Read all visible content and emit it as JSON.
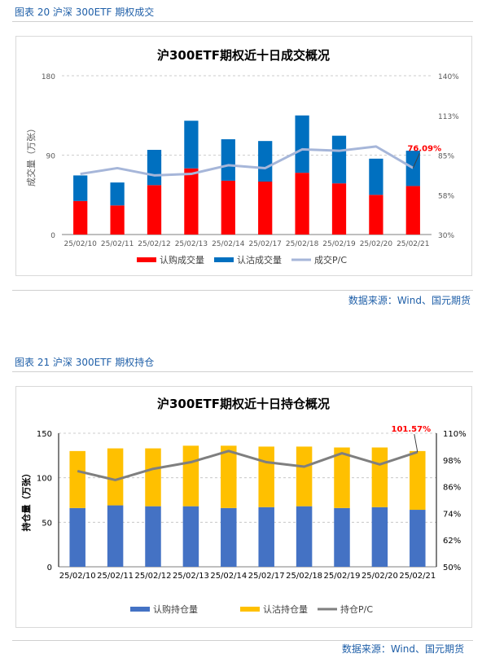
{
  "figure1": {
    "caption": "图表 20  沪深 300ETF 期权成交",
    "source": "数据来源：Wind、国元期货",
    "chart_data": {
      "type": "bar",
      "stacked": true,
      "title": "沪300ETF期权近十日成交概况",
      "ylabel": "成交量（万张）",
      "ylim": [
        0,
        180
      ],
      "y_ticks": [
        "0",
        "90",
        "180"
      ],
      "y2lim": [
        0.3,
        1.4
      ],
      "y2_ticks": [
        "30%",
        "58%",
        "85%",
        "113%",
        "140%"
      ],
      "categories": [
        "25/02/10",
        "25/02/11",
        "25/02/12",
        "25/02/13",
        "25/02/14",
        "25/02/17",
        "25/02/18",
        "25/02/19",
        "25/02/20",
        "25/02/21"
      ],
      "series": [
        {
          "name": "认购成交量",
          "type": "bar",
          "color": "#ff0000",
          "values": [
            38,
            33,
            56,
            75,
            61,
            60,
            70,
            58,
            45,
            55
          ]
        },
        {
          "name": "认沽成交量",
          "type": "bar",
          "color": "#0070c0",
          "values": [
            29,
            26,
            40,
            54,
            47,
            46,
            65,
            54,
            41,
            40
          ]
        },
        {
          "name": "成交P/C",
          "type": "line",
          "axis": "right",
          "color": "#a6b6d9",
          "values": [
            0.72,
            0.76,
            0.71,
            0.72,
            0.78,
            0.76,
            0.89,
            0.88,
            0.91,
            0.7609
          ]
        }
      ],
      "annotation": {
        "text": "76.09%",
        "color": "#ff0000"
      },
      "legend_position": "bottom",
      "grid": "horizontal-dashed"
    }
  },
  "figure2": {
    "caption": "图表 21  沪深 300ETF 期权持仓",
    "source": "数据来源：Wind、国元期货",
    "chart_data": {
      "type": "bar",
      "stacked": true,
      "title": "沪300ETF期权近十日持仓概况",
      "ylabel": "持仓量（万张）",
      "ylim": [
        0,
        150
      ],
      "y_ticks": [
        "0",
        "50",
        "100",
        "150"
      ],
      "y2lim": [
        0.5,
        1.1
      ],
      "y2_ticks": [
        "50%",
        "62%",
        "74%",
        "86%",
        "98%",
        "110%"
      ],
      "categories": [
        "25/02/10",
        "25/02/11",
        "25/02/12",
        "25/02/13",
        "25/02/14",
        "25/02/17",
        "25/02/18",
        "25/02/19",
        "25/02/20",
        "25/02/21"
      ],
      "series": [
        {
          "name": "认购持仓量",
          "type": "bar",
          "color": "#4472c4",
          "values": [
            66,
            69,
            68,
            68,
            66,
            67,
            68,
            66,
            67,
            64
          ]
        },
        {
          "name": "认沽持仓量",
          "type": "bar",
          "color": "#ffc000",
          "values": [
            64,
            64,
            65,
            68,
            70,
            68,
            67,
            68,
            67,
            66
          ]
        },
        {
          "name": "持仓P/C",
          "type": "line",
          "axis": "right",
          "color": "#7f7f7f",
          "values": [
            0.93,
            0.89,
            0.94,
            0.97,
            1.02,
            0.97,
            0.95,
            1.01,
            0.96,
            1.0157
          ]
        }
      ],
      "annotation": {
        "text": "101.57%",
        "color": "#ff0000"
      },
      "legend_position": "bottom",
      "grid": "horizontal-dashed"
    }
  }
}
